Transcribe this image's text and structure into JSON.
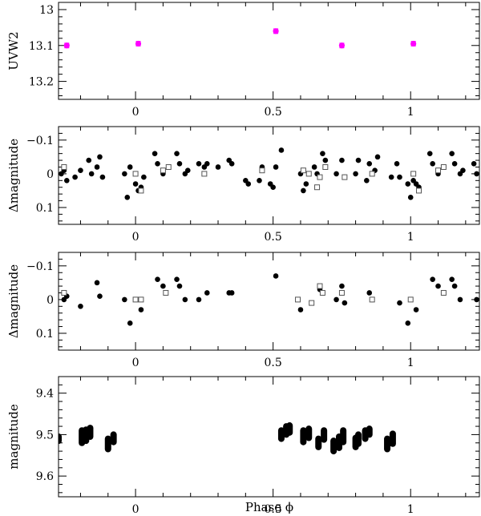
{
  "figure": {
    "xlabel": "Phase ϕ",
    "xlim": [
      -0.28,
      1.25
    ],
    "x_major_ticks": [
      0,
      0.5,
      1
    ],
    "x_tick_labels": [
      "0",
      "0.5",
      "1"
    ],
    "x_minor_step": 0.1
  },
  "chart_data": [
    {
      "type": "scatter",
      "ylabel": "UVW2",
      "ylim": [
        13.25,
        12.98
      ],
      "y_major_ticks": [
        13,
        13.1,
        13.2
      ],
      "y_tick_labels": [
        "13",
        "13.1",
        "13.2"
      ],
      "y_minor_step": 0.02,
      "grid": false,
      "series": [
        {
          "marker": "filled-circle-with-errorbar",
          "color": "#ff00ff",
          "x": [
            -0.25,
            0.01,
            0.51,
            0.75,
            1.01
          ],
          "y": [
            13.1,
            13.095,
            13.06,
            13.1,
            13.095
          ],
          "yerr": [
            0.006,
            0.006,
            0.006,
            0.006,
            0.006
          ]
        }
      ]
    },
    {
      "type": "scatter",
      "ylabel": "Δmagnitude",
      "ylim": [
        0.15,
        -0.14
      ],
      "y_major_ticks": [
        -0.1,
        0,
        0.1
      ],
      "y_tick_labels": [
        "−0.1",
        "0",
        "0.1"
      ],
      "y_minor_step": 0.02,
      "grid": false,
      "series": [
        {
          "marker": "filled-circle",
          "color": "#000000",
          "x": [
            -0.27,
            -0.26,
            -0.25,
            -0.22,
            -0.2,
            -0.17,
            -0.16,
            -0.14,
            -0.13,
            -0.12,
            -0.04,
            -0.03,
            -0.02,
            0.0,
            0.01,
            0.02,
            0.03,
            0.07,
            0.08,
            0.1,
            0.12,
            0.15,
            0.16,
            0.18,
            0.19,
            0.23,
            0.25,
            0.26,
            0.3,
            0.34,
            0.35,
            0.4,
            0.41,
            0.45,
            0.46,
            0.49,
            0.5,
            0.51,
            0.53,
            0.6,
            0.61,
            0.62,
            0.65,
            0.66,
            0.68,
            0.69,
            0.73,
            0.75,
            0.76,
            0.8,
            0.81,
            0.84,
            0.85,
            0.87,
            0.88,
            0.93,
            0.95,
            0.96,
            0.99,
            1.0,
            1.01,
            1.02,
            1.03,
            1.07,
            1.08,
            1.1,
            1.12,
            1.15,
            1.16,
            1.18,
            1.19,
            1.23,
            1.24
          ],
          "y": [
            0.0,
            -0.01,
            0.02,
            0.01,
            -0.01,
            -0.04,
            0.0,
            -0.02,
            -0.05,
            0.01,
            0.0,
            0.07,
            -0.02,
            0.03,
            0.05,
            0.04,
            0.01,
            -0.06,
            -0.03,
            0.0,
            -0.02,
            -0.06,
            -0.03,
            0.0,
            -0.01,
            -0.03,
            -0.02,
            -0.03,
            -0.02,
            -0.04,
            -0.03,
            0.02,
            0.03,
            0.02,
            -0.02,
            0.03,
            0.04,
            -0.02,
            -0.07,
            0.0,
            0.05,
            0.03,
            -0.02,
            0.0,
            -0.06,
            -0.04,
            0.0,
            -0.04,
            0.01,
            0.0,
            -0.04,
            0.02,
            -0.03,
            -0.01,
            -0.05,
            0.01,
            -0.03,
            0.01,
            0.03,
            0.07,
            0.02,
            0.03,
            0.04,
            -0.06,
            -0.03,
            0.0,
            -0.02,
            -0.06,
            -0.03,
            0.0,
            -0.01,
            -0.03,
            0.0
          ]
        },
        {
          "marker": "open-square",
          "color": "#555555",
          "x": [
            -0.26,
            0.0,
            0.02,
            0.1,
            0.12,
            0.25,
            0.46,
            0.61,
            0.63,
            0.66,
            0.67,
            0.69,
            0.76,
            0.86,
            1.01,
            1.03,
            1.1,
            1.12
          ],
          "y": [
            -0.02,
            0.0,
            0.05,
            -0.01,
            -0.02,
            0.0,
            -0.01,
            -0.01,
            0.0,
            0.04,
            0.01,
            -0.02,
            0.01,
            0.0,
            0.0,
            0.05,
            -0.01,
            -0.02
          ]
        }
      ]
    },
    {
      "type": "scatter",
      "ylabel": "Δmagnitude",
      "ylim": [
        0.15,
        -0.14
      ],
      "y_major_ticks": [
        -0.1,
        0,
        0.1
      ],
      "y_tick_labels": [
        "−0.1",
        "0",
        "0.1"
      ],
      "y_minor_step": 0.02,
      "grid": false,
      "series": [
        {
          "marker": "filled-circle",
          "color": "#000000",
          "x": [
            -0.26,
            -0.25,
            -0.2,
            -0.14,
            -0.13,
            -0.04,
            -0.02,
            0.02,
            0.08,
            0.1,
            0.15,
            0.16,
            0.18,
            0.23,
            0.26,
            0.34,
            0.35,
            0.51,
            0.6,
            0.67,
            0.68,
            0.73,
            0.75,
            0.76,
            0.85,
            0.86,
            0.96,
            0.99,
            1.02,
            1.08,
            1.1,
            1.15,
            1.16,
            1.18,
            1.24
          ],
          "y": [
            0.0,
            -0.01,
            0.02,
            -0.05,
            -0.01,
            0.0,
            0.07,
            0.03,
            -0.06,
            -0.04,
            -0.06,
            -0.04,
            0.0,
            0.0,
            -0.02,
            -0.02,
            -0.02,
            -0.07,
            0.03,
            -0.03,
            -0.02,
            0.0,
            -0.04,
            0.01,
            -0.02,
            0.0,
            0.01,
            0.07,
            0.03,
            -0.06,
            -0.04,
            -0.06,
            -0.04,
            0.0,
            0.0
          ]
        },
        {
          "marker": "open-square",
          "color": "#555555",
          "x": [
            -0.26,
            0.0,
            0.02,
            0.11,
            0.59,
            0.64,
            0.67,
            0.68,
            0.75,
            0.86,
            1.0,
            1.12
          ],
          "y": [
            -0.02,
            0.0,
            0.0,
            -0.02,
            0.0,
            0.01,
            -0.04,
            -0.02,
            -0.02,
            0.0,
            0.0,
            -0.02
          ]
        }
      ]
    },
    {
      "type": "scatter",
      "ylabel": "magnitude",
      "ylim": [
        9.65,
        9.36
      ],
      "y_major_ticks": [
        9.4,
        9.5,
        9.6
      ],
      "y_tick_labels": [
        "9.4",
        "9.5",
        "9.6"
      ],
      "y_minor_step": 0.02,
      "grid": false,
      "series": [
        {
          "marker": "filled-circle",
          "color": "#000000",
          "segments": [
            {
              "x": -0.28,
              "y_range": [
                9.505,
                9.515
              ]
            },
            {
              "x": -0.195,
              "y_range": [
                9.49,
                9.52
              ]
            },
            {
              "x": -0.18,
              "y_range": [
                9.488,
                9.515
              ]
            },
            {
              "x": -0.165,
              "y_range": [
                9.484,
                9.505
              ]
            },
            {
              "x": -0.1,
              "y_range": [
                9.51,
                9.535
              ]
            },
            {
              "x": -0.08,
              "y_range": [
                9.5,
                9.518
              ]
            },
            {
              "x": 0.53,
              "y_range": [
                9.49,
                9.51
              ]
            },
            {
              "x": 0.548,
              "y_range": [
                9.48,
                9.5
              ]
            },
            {
              "x": 0.56,
              "y_range": [
                9.478,
                9.495
              ]
            },
            {
              "x": 0.61,
              "y_range": [
                9.49,
                9.518
              ]
            },
            {
              "x": 0.63,
              "y_range": [
                9.486,
                9.508
              ]
            },
            {
              "x": 0.665,
              "y_range": [
                9.51,
                9.53
              ]
            },
            {
              "x": 0.685,
              "y_range": [
                9.49,
                9.512
              ]
            },
            {
              "x": 0.72,
              "y_range": [
                9.515,
                9.54
              ]
            },
            {
              "x": 0.74,
              "y_range": [
                9.505,
                9.532
              ]
            },
            {
              "x": 0.755,
              "y_range": [
                9.49,
                9.518
              ]
            },
            {
              "x": 0.8,
              "y_range": [
                9.508,
                9.53
              ]
            },
            {
              "x": 0.81,
              "y_range": [
                9.5,
                9.522
              ]
            },
            {
              "x": 0.835,
              "y_range": [
                9.49,
                9.51
              ]
            },
            {
              "x": 0.85,
              "y_range": [
                9.486,
                9.5
              ]
            },
            {
              "x": 0.915,
              "y_range": [
                9.51,
                9.535
              ]
            },
            {
              "x": 0.935,
              "y_range": [
                9.498,
                9.522
              ]
            }
          ]
        }
      ]
    }
  ]
}
